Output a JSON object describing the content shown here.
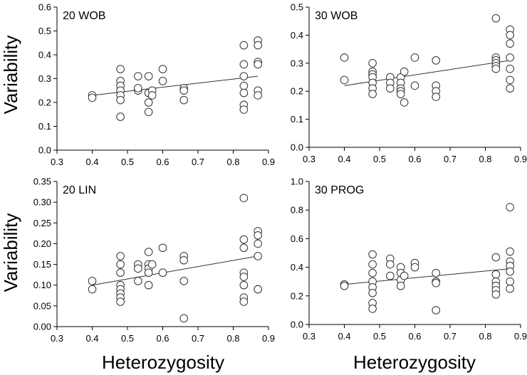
{
  "figure": {
    "ylabel": "Variability",
    "xlabel": "Heterozygosity"
  },
  "chart_data": [
    {
      "type": "scatter",
      "title": "20 WOB",
      "xlim": [
        0.3,
        0.9
      ],
      "ylim": [
        0.0,
        0.6
      ],
      "xticks": [
        "0.3",
        "0.4",
        "0.5",
        "0.6",
        "0.7",
        "0.8",
        "0.9"
      ],
      "yticks": [
        "0.0",
        "0.1",
        "0.2",
        "0.3",
        "0.4",
        "0.5",
        "0.6"
      ],
      "points": [
        [
          0.4,
          0.23
        ],
        [
          0.4,
          0.22
        ],
        [
          0.48,
          0.34
        ],
        [
          0.48,
          0.29
        ],
        [
          0.48,
          0.27
        ],
        [
          0.48,
          0.25
        ],
        [
          0.48,
          0.23
        ],
        [
          0.48,
          0.21
        ],
        [
          0.48,
          0.14
        ],
        [
          0.53,
          0.31
        ],
        [
          0.53,
          0.25
        ],
        [
          0.53,
          0.26
        ],
        [
          0.56,
          0.31
        ],
        [
          0.56,
          0.24
        ],
        [
          0.56,
          0.24
        ],
        [
          0.56,
          0.2
        ],
        [
          0.56,
          0.16
        ],
        [
          0.57,
          0.25
        ],
        [
          0.57,
          0.23
        ],
        [
          0.6,
          0.34
        ],
        [
          0.6,
          0.29
        ],
        [
          0.66,
          0.26
        ],
        [
          0.66,
          0.25
        ],
        [
          0.66,
          0.21
        ],
        [
          0.83,
          0.44
        ],
        [
          0.83,
          0.36
        ],
        [
          0.83,
          0.31
        ],
        [
          0.83,
          0.27
        ],
        [
          0.83,
          0.24
        ],
        [
          0.83,
          0.19
        ],
        [
          0.83,
          0.17
        ],
        [
          0.87,
          0.46
        ],
        [
          0.87,
          0.44
        ],
        [
          0.87,
          0.37
        ],
        [
          0.87,
          0.36
        ],
        [
          0.87,
          0.25
        ],
        [
          0.87,
          0.23
        ]
      ],
      "trend": [
        [
          0.4,
          0.23
        ],
        [
          0.87,
          0.31
        ]
      ]
    },
    {
      "type": "scatter",
      "title": "30 WOB",
      "xlim": [
        0.3,
        0.9
      ],
      "ylim": [
        0.0,
        0.5
      ],
      "xticks": [
        "0.3",
        "0.4",
        "0.5",
        "0.6",
        "0.7",
        "0.8",
        "0.9"
      ],
      "yticks": [
        "0.0",
        "0.1",
        "0.2",
        "0.3",
        "0.4",
        "0.5"
      ],
      "points": [
        [
          0.4,
          0.32
        ],
        [
          0.4,
          0.24
        ],
        [
          0.48,
          0.3
        ],
        [
          0.48,
          0.27
        ],
        [
          0.48,
          0.26
        ],
        [
          0.48,
          0.25
        ],
        [
          0.48,
          0.23
        ],
        [
          0.48,
          0.21
        ],
        [
          0.48,
          0.19
        ],
        [
          0.53,
          0.25
        ],
        [
          0.53,
          0.23
        ],
        [
          0.53,
          0.21
        ],
        [
          0.56,
          0.25
        ],
        [
          0.56,
          0.23
        ],
        [
          0.56,
          0.21
        ],
        [
          0.56,
          0.2
        ],
        [
          0.56,
          0.19
        ],
        [
          0.57,
          0.27
        ],
        [
          0.57,
          0.16
        ],
        [
          0.6,
          0.32
        ],
        [
          0.6,
          0.22
        ],
        [
          0.66,
          0.31
        ],
        [
          0.66,
          0.22
        ],
        [
          0.66,
          0.2
        ],
        [
          0.66,
          0.18
        ],
        [
          0.83,
          0.46
        ],
        [
          0.83,
          0.32
        ],
        [
          0.83,
          0.31
        ],
        [
          0.83,
          0.3
        ],
        [
          0.83,
          0.29
        ],
        [
          0.83,
          0.28
        ],
        [
          0.87,
          0.42
        ],
        [
          0.87,
          0.4
        ],
        [
          0.87,
          0.37
        ],
        [
          0.87,
          0.32
        ],
        [
          0.87,
          0.28
        ],
        [
          0.87,
          0.24
        ],
        [
          0.87,
          0.21
        ]
      ],
      "trend": [
        [
          0.4,
          0.22
        ],
        [
          0.87,
          0.31
        ]
      ]
    },
    {
      "type": "scatter",
      "title": "20 LIN",
      "xlim": [
        0.3,
        0.9
      ],
      "ylim": [
        0.0,
        0.35
      ],
      "xticks": [
        "0.3",
        "0.4",
        "0.5",
        "0.6",
        "0.7",
        "0.8",
        "0.9"
      ],
      "yticks": [
        "0.00",
        "0.05",
        "0.10",
        "0.15",
        "0.20",
        "0.25",
        "0.30",
        "0.35"
      ],
      "points": [
        [
          0.4,
          0.11
        ],
        [
          0.4,
          0.09
        ],
        [
          0.48,
          0.17
        ],
        [
          0.48,
          0.15
        ],
        [
          0.48,
          0.13
        ],
        [
          0.48,
          0.1
        ],
        [
          0.48,
          0.09
        ],
        [
          0.48,
          0.08
        ],
        [
          0.48,
          0.07
        ],
        [
          0.48,
          0.06
        ],
        [
          0.53,
          0.15
        ],
        [
          0.53,
          0.14
        ],
        [
          0.53,
          0.11
        ],
        [
          0.56,
          0.18
        ],
        [
          0.56,
          0.15
        ],
        [
          0.56,
          0.14
        ],
        [
          0.56,
          0.13
        ],
        [
          0.56,
          0.1
        ],
        [
          0.57,
          0.15
        ],
        [
          0.6,
          0.19
        ],
        [
          0.6,
          0.13
        ],
        [
          0.66,
          0.17
        ],
        [
          0.66,
          0.16
        ],
        [
          0.66,
          0.11
        ],
        [
          0.66,
          0.02
        ],
        [
          0.83,
          0.31
        ],
        [
          0.83,
          0.21
        ],
        [
          0.83,
          0.19
        ],
        [
          0.83,
          0.13
        ],
        [
          0.83,
          0.12
        ],
        [
          0.83,
          0.1
        ],
        [
          0.83,
          0.07
        ],
        [
          0.83,
          0.06
        ],
        [
          0.87,
          0.23
        ],
        [
          0.87,
          0.22
        ],
        [
          0.87,
          0.2
        ],
        [
          0.87,
          0.17
        ],
        [
          0.87,
          0.09
        ],
        [
          0.87,
          0.09
        ]
      ],
      "trend": [
        [
          0.4,
          0.1
        ],
        [
          0.87,
          0.17
        ]
      ]
    },
    {
      "type": "scatter",
      "title": "30 PROG",
      "xlim": [
        0.3,
        0.9
      ],
      "ylim": [
        0.0,
        1.0
      ],
      "xticks": [
        "0.3",
        "0.4",
        "0.5",
        "0.6",
        "0.7",
        "0.8",
        "0.9"
      ],
      "yticks": [
        "0.0",
        "0.2",
        "0.4",
        "0.6",
        "0.8",
        "1.0"
      ],
      "points": [
        [
          0.4,
          0.28
        ],
        [
          0.4,
          0.27
        ],
        [
          0.48,
          0.49
        ],
        [
          0.48,
          0.42
        ],
        [
          0.48,
          0.36
        ],
        [
          0.48,
          0.3
        ],
        [
          0.48,
          0.26
        ],
        [
          0.48,
          0.22
        ],
        [
          0.48,
          0.15
        ],
        [
          0.48,
          0.11
        ],
        [
          0.53,
          0.46
        ],
        [
          0.53,
          0.42
        ],
        [
          0.53,
          0.34
        ],
        [
          0.56,
          0.4
        ],
        [
          0.56,
          0.36
        ],
        [
          0.56,
          0.31
        ],
        [
          0.56,
          0.27
        ],
        [
          0.57,
          0.34
        ],
        [
          0.6,
          0.43
        ],
        [
          0.6,
          0.4
        ],
        [
          0.66,
          0.36
        ],
        [
          0.66,
          0.3
        ],
        [
          0.66,
          0.29
        ],
        [
          0.66,
          0.1
        ],
        [
          0.83,
          0.47
        ],
        [
          0.83,
          0.35
        ],
        [
          0.83,
          0.3
        ],
        [
          0.83,
          0.27
        ],
        [
          0.83,
          0.24
        ],
        [
          0.83,
          0.21
        ],
        [
          0.87,
          0.82
        ],
        [
          0.87,
          0.51
        ],
        [
          0.87,
          0.44
        ],
        [
          0.87,
          0.41
        ],
        [
          0.87,
          0.37
        ],
        [
          0.87,
          0.3
        ],
        [
          0.87,
          0.25
        ]
      ],
      "trend": [
        [
          0.4,
          0.28
        ],
        [
          0.87,
          0.39
        ]
      ]
    }
  ]
}
